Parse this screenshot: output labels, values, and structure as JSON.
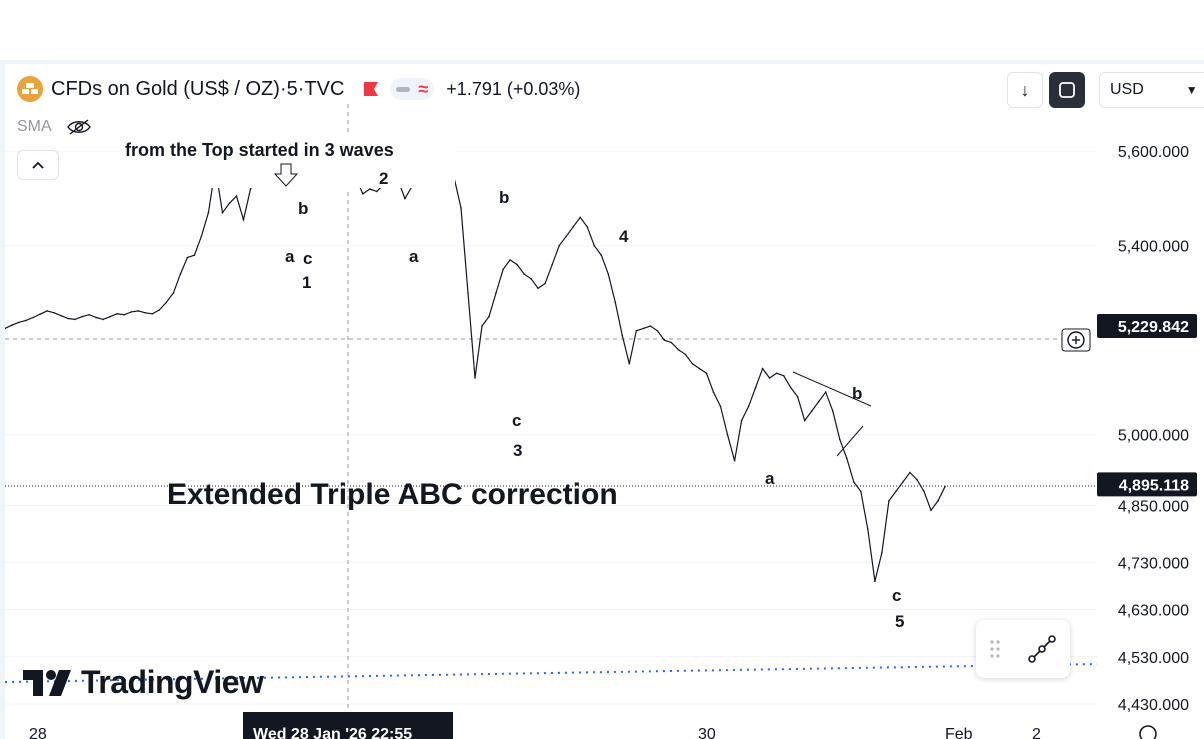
{
  "header": {
    "symbol_name": "CFDs on Gold (US$ / OZ)",
    "interval": "5",
    "exchange": "TVC",
    "separator": " · ",
    "change": "+1.791 (+0.03%)"
  },
  "indicator": {
    "label": "SMA"
  },
  "toolbar": {
    "currency": "USD"
  },
  "branding": {
    "logo_text": "TradingView"
  },
  "colors": {
    "up": "#131722",
    "accent": "#2962ff",
    "flag": "#f23645",
    "gold": "#e8a33d"
  },
  "chart_data": {
    "type": "line",
    "ylim": [
      4430,
      5700
    ],
    "y_ticks": [
      {
        "value": 5600,
        "label": "5,600.000"
      },
      {
        "value": 5400,
        "label": "5,400.000"
      },
      {
        "value": 5230,
        "label": "5,229.842",
        "highlight": true
      },
      {
        "value": 5000,
        "label": "5,000.000"
      },
      {
        "value": 4895,
        "label": "4,895.118",
        "highlight": true
      },
      {
        "value": 4850,
        "label": "4,850.000"
      },
      {
        "value": 4730,
        "label": "4,730.000"
      },
      {
        "value": 4630,
        "label": "4,630.000"
      },
      {
        "value": 4530,
        "label": "4,530.000"
      },
      {
        "value": 4430,
        "label": "4,430.000"
      }
    ],
    "x_ticks": [
      "28",
      "Wed 28 Jan '26   22:55",
      "30",
      "Feb",
      "2"
    ],
    "series": [
      {
        "values": [
          5225,
          5232,
          5238,
          5242,
          5248,
          5255,
          5262,
          5258,
          5252,
          5246,
          5244,
          5250,
          5254,
          5248,
          5244,
          5250,
          5256,
          5254,
          5260,
          5262,
          5258,
          5256,
          5264,
          5280,
          5300,
          5340,
          5375,
          5380,
          5420,
          5470,
          5565,
          5470,
          5490,
          5505,
          5455,
          5520,
          5545,
          5540,
          5555,
          5550,
          5545,
          5560,
          5570,
          5575,
          5582,
          5590,
          5600,
          5595,
          5575,
          5560,
          5545,
          5510,
          5520,
          5515,
          5530,
          5525,
          5540,
          5500,
          5525,
          5535,
          5540,
          5548,
          5560,
          5555,
          5545,
          5480,
          5300,
          5120,
          5230,
          5250,
          5300,
          5350,
          5370,
          5360,
          5340,
          5330,
          5310,
          5320,
          5360,
          5400,
          5420,
          5440,
          5460,
          5440,
          5400,
          5380,
          5340,
          5280,
          5210,
          5150,
          5220,
          5225,
          5230,
          5220,
          5200,
          5195,
          5180,
          5170,
          5150,
          5140,
          5130,
          5090,
          5060,
          5000,
          4945,
          5030,
          5060,
          5100,
          5140,
          5120,
          5130,
          5125,
          5100,
          5080,
          5030,
          5050,
          5070,
          5090,
          5050,
          4990,
          4950,
          4900,
          4880,
          4800,
          4690,
          4750,
          4860,
          4880,
          4900,
          4920,
          4905,
          4880,
          4840,
          4860,
          4890
        ]
      }
    ],
    "annotations": [
      {
        "text": "from the Top started in 3 waves",
        "kind": "note"
      },
      {
        "text": "Extended Triple ABC correction",
        "kind": "title"
      },
      {
        "text": "a"
      },
      {
        "text": "b"
      },
      {
        "text": "c"
      },
      {
        "text": "1"
      },
      {
        "text": "2"
      },
      {
        "text": "a"
      },
      {
        "text": "b"
      },
      {
        "text": "c"
      },
      {
        "text": "3"
      },
      {
        "text": "4"
      },
      {
        "text": "a"
      },
      {
        "text": "b"
      },
      {
        "text": "c"
      },
      {
        "text": "5"
      }
    ],
    "crosshair_price": "5,229.842",
    "last_price": "4,895.118"
  }
}
